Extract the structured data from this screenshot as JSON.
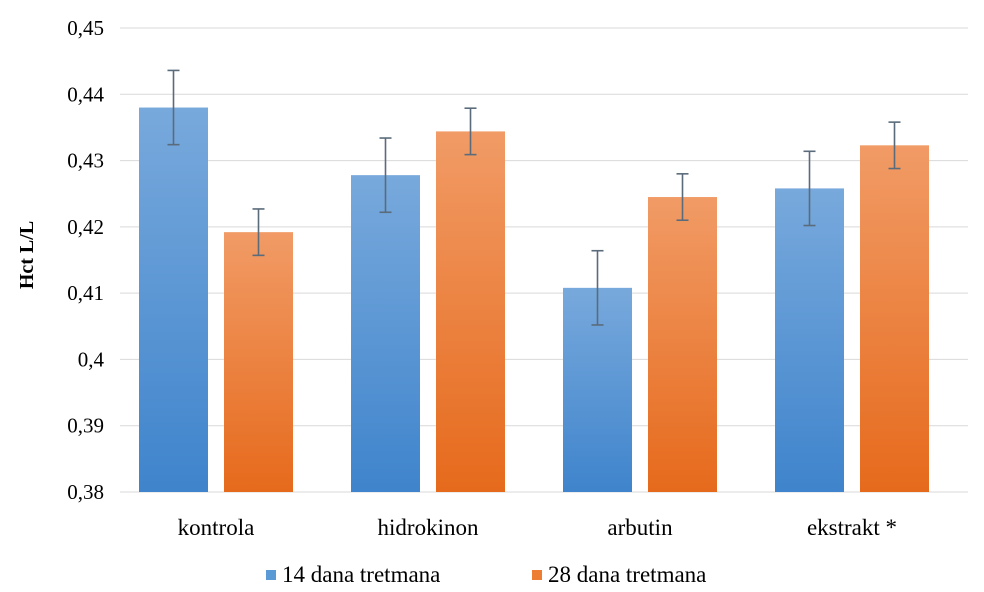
{
  "chart_data": {
    "type": "bar",
    "title": "",
    "xlabel": "",
    "ylabel": "Hct L/L",
    "ylim": [
      0.38,
      0.45
    ],
    "yticks": [
      "0,38",
      "0,39",
      "0,4",
      "0,41",
      "0,42",
      "0,43",
      "0,44",
      "0,45"
    ],
    "ytick_values": [
      0.38,
      0.39,
      0.4,
      0.41,
      0.42,
      0.43,
      0.44,
      0.45
    ],
    "grid": true,
    "legend_position": "bottom",
    "categories": [
      "kontrola",
      "hidrokinon",
      "arbutin",
      "ekstrakt *"
    ],
    "series": [
      {
        "name": "14 dana tretmana",
        "color": "#5b9bd5",
        "values": [
          0.438,
          0.4278,
          0.4108,
          0.4258
        ],
        "error": [
          0.0056,
          0.0056,
          0.0056,
          0.0056
        ]
      },
      {
        "name": "28 dana tretmana",
        "color": "#ed7d31",
        "values": [
          0.4192,
          0.4344,
          0.4245,
          0.4323
        ],
        "error": [
          0.0035,
          0.0035,
          0.0035,
          0.0035
        ]
      }
    ]
  }
}
